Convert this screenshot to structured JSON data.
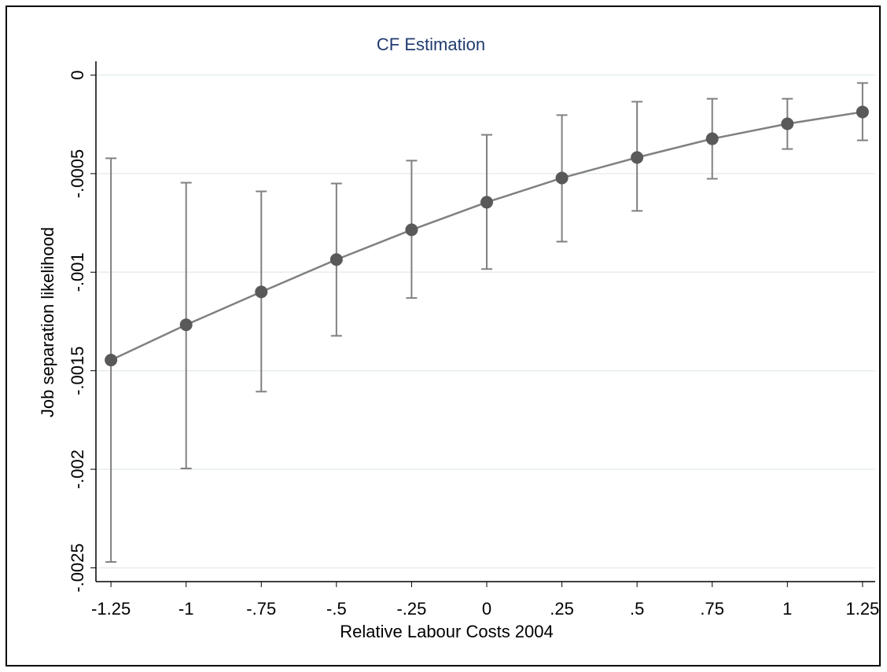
{
  "chart_data": {
    "type": "line",
    "title": "CF Estimation",
    "x_label": "Relative Labour Costs 2004",
    "y_label": "Job separation likelihood",
    "x": [
      -1.25,
      -1,
      -0.75,
      -0.5,
      -0.25,
      0,
      0.25,
      0.5,
      0.75,
      1,
      1.25
    ],
    "series": [
      {
        "color": "#595959",
        "line_color": "#808080",
        "values": [
          -0.001446,
          -0.001267,
          -0.0011,
          -0.000936,
          -0.000785,
          -0.000645,
          -0.000522,
          -0.000418,
          -0.000323,
          -0.000247,
          -0.000187
        ],
        "upper": [
          -0.000422,
          -0.000546,
          -0.00059,
          -0.00055,
          -0.000434,
          -0.000303,
          -0.000203,
          -0.000135,
          -0.00012,
          -0.00012,
          -4e-05
        ],
        "lower": [
          -0.00247,
          -0.001996,
          -0.001606,
          -0.001323,
          -0.001131,
          -0.000984,
          -0.000845,
          -0.000689,
          -0.000526,
          -0.000375,
          -0.000331
        ]
      }
    ],
    "xlim": [
      -1.3,
      1.3
    ],
    "ylim": [
      -0.00257,
      7e-05
    ],
    "xticks": [
      -1.25,
      -1,
      {
        "value": -0.75,
        "label": "-.75"
      },
      {
        "value": -0.5,
        "label": "-.5"
      },
      {
        "value": -0.25,
        "label": "-.25"
      },
      0,
      {
        "value": 0.25,
        "label": ".25"
      },
      {
        "value": 0.5,
        "label": ".5"
      },
      {
        "value": 0.75,
        "label": ".75"
      },
      1,
      1.25
    ],
    "yticks": [
      0,
      {
        "value": -0.0005,
        "label": "-.0005"
      },
      {
        "value": -0.001,
        "label": "-.001"
      },
      {
        "value": -0.0015,
        "label": "-.0015"
      },
      {
        "value": -0.002,
        "label": "-.002"
      },
      {
        "value": -0.0025,
        "label": "-.0025"
      }
    ],
    "grid": true
  }
}
